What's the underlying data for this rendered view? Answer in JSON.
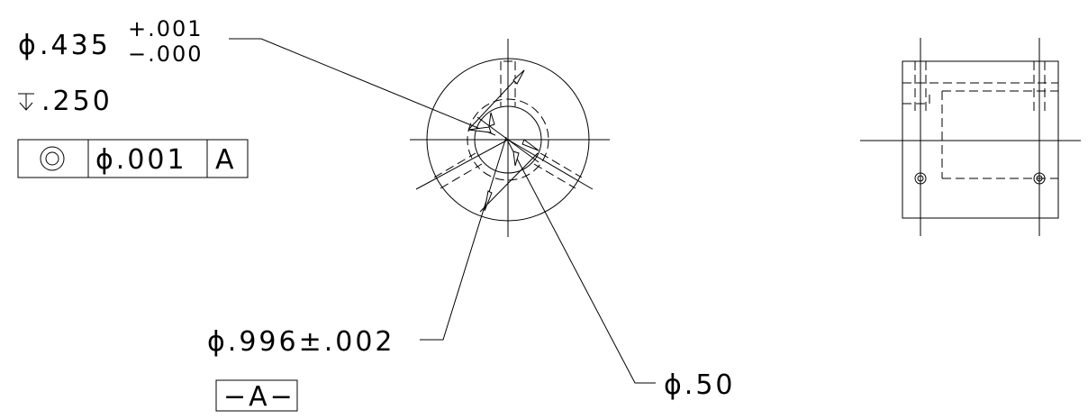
{
  "callouts": {
    "bore": {
      "diameter_symbol": "ϕ",
      "nominal": ".435",
      "tol_plus": "+.001",
      "tol_minus": "−.000"
    },
    "depth": {
      "symbol": "↧",
      "value": ".250"
    },
    "feature_control_frame": {
      "symbol": "◎",
      "tolerance": "ϕ.001",
      "datum": "A"
    },
    "outer_diameter": {
      "text": "ϕ.996±.002"
    },
    "datum_label": {
      "text": "−A−"
    },
    "bolt_circle": {
      "text": "ϕ.50"
    }
  },
  "icons": {
    "concentricity": "concentricity-icon",
    "depth": "depth-icon",
    "diameter": "diameter-icon"
  }
}
